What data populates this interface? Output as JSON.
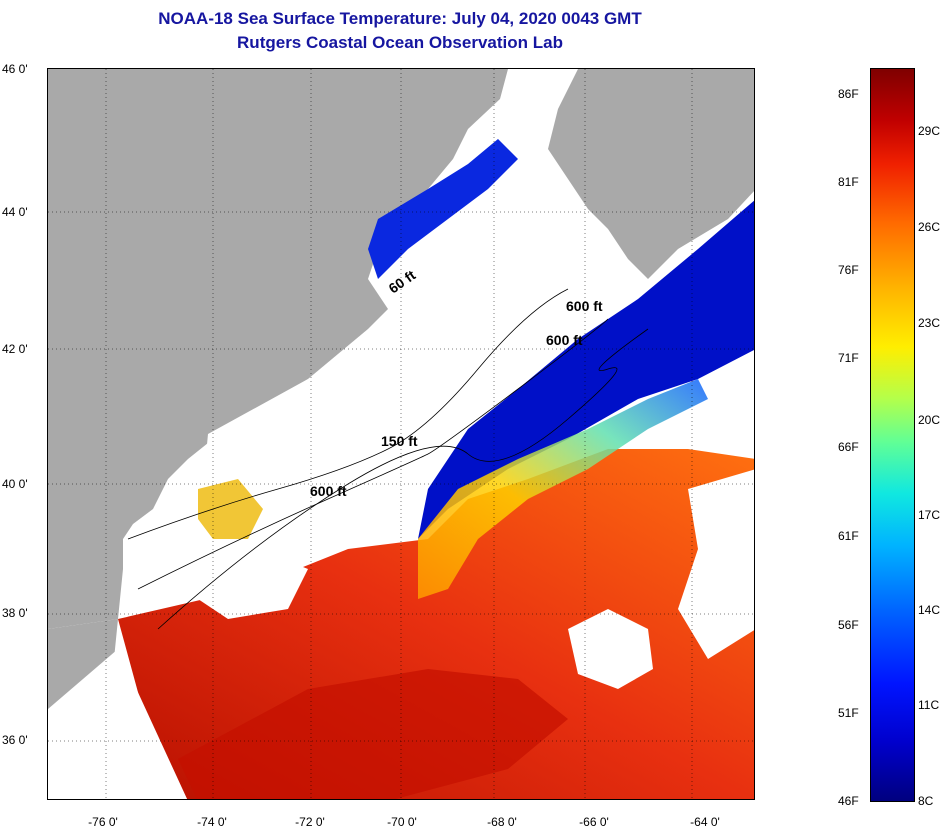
{
  "header": {
    "title_line1": "NOAA-18 Sea Surface Temperature:  July 04, 2020 0043 GMT",
    "title_line2": "Rutgers Coastal Ocean Observation Lab"
  },
  "map": {
    "latitude_labels": [
      "46 0'",
      "44 0'",
      "42 0'",
      "40 0'",
      "38 0'",
      "36 0'"
    ],
    "longitude_labels": [
      "-76 0'",
      "-74 0'",
      "-72 0'",
      "-70 0'",
      "-68 0'",
      "-66 0'",
      "-64 0'"
    ],
    "contour_labels": [
      "60 ft",
      "600 ft",
      "600 ft",
      "150 ft",
      "600 ft"
    ],
    "colors": {
      "land": "#a9a9a9",
      "cloud": "#ffffff",
      "cold": "#0010c8",
      "warm": "#f03810",
      "hot": "#c81800"
    }
  },
  "colorbar": {
    "fahrenheit_labels": [
      "86F",
      "81F",
      "76F",
      "71F",
      "66F",
      "61F",
      "56F",
      "51F",
      "46F"
    ],
    "celsius_labels": [
      "29C",
      "26C",
      "23C",
      "20C",
      "17C",
      "14C",
      "11C",
      "8C"
    ],
    "range_f": [
      46,
      88
    ]
  }
}
